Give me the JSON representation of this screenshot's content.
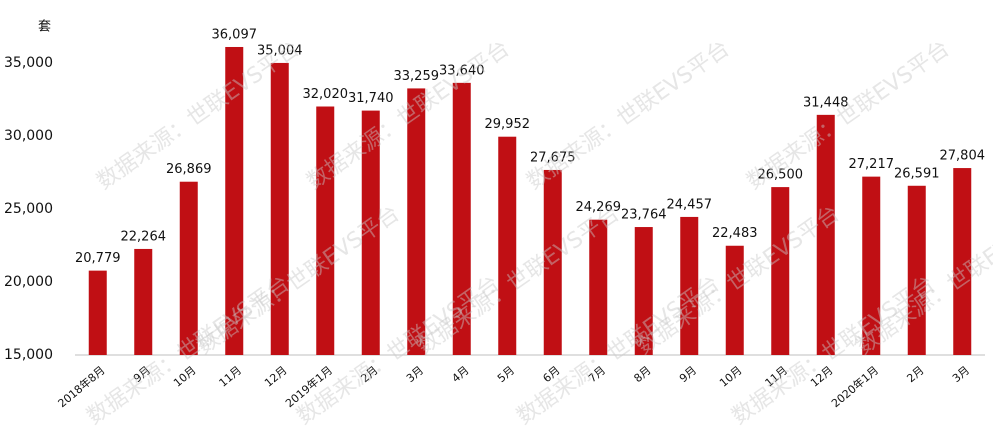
{
  "chart_data": {
    "type": "bar",
    "y_label": "套",
    "watermark": "数据来源：世联EVS平台",
    "categories": [
      "2018年8月",
      "9月",
      "10月",
      "11月",
      "12月",
      "2019年1月",
      "2月",
      "3月",
      "4月",
      "5月",
      "6月",
      "7月",
      "8月",
      "9月",
      "10月",
      "11月",
      "12月",
      "2020年1月",
      "2月",
      "3月"
    ],
    "values": [
      20779,
      22264,
      26869,
      36097,
      35004,
      32020,
      31740,
      33259,
      33640,
      29952,
      27675,
      24269,
      23764,
      24457,
      22483,
      26500,
      31448,
      27217,
      26591,
      27804
    ],
    "value_labels": [
      "20,779",
      "22,264",
      "26,869",
      "36,097",
      "35,004",
      "32,020",
      "31,740",
      "33,259",
      "33,640",
      "29,952",
      "27,675",
      "24,269",
      "23,764",
      "24,457",
      "22,483",
      "26,500",
      "31,448",
      "27,217",
      "26,591",
      "27,804"
    ],
    "color": "#c00f14",
    "ylim": [
      15000,
      38000
    ],
    "yticks": [
      {
        "value": 15000,
        "label": "15,000"
      },
      {
        "value": 20000,
        "label": "20,000"
      },
      {
        "value": 25000,
        "label": "25,000"
      },
      {
        "value": 30000,
        "label": "30,000"
      },
      {
        "value": 35000,
        "label": "35,000"
      }
    ],
    "grid": false
  }
}
